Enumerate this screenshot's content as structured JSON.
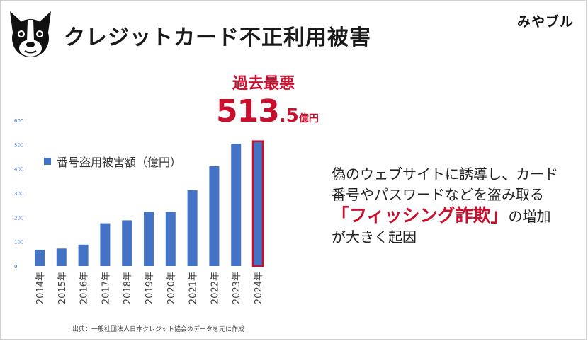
{
  "header": {
    "title": "クレジットカード不正利用被害",
    "brand": "みやブル"
  },
  "colors": {
    "bar": "#4472c4",
    "highlight_border": "#c8102e",
    "accent_red": "#c8102e"
  },
  "icons": {
    "logo": "boston-terrier-logo-icon"
  },
  "callout": {
    "title": "過去最悪",
    "value_int": "513",
    "value_dec": ".5",
    "unit": "億円"
  },
  "message": {
    "line1": "偽のウェブサイトに誘導し、カード",
    "line2": "番号やパスワードなどを盗み取る",
    "highlight": "「フィッシング詐欺」",
    "line3_suffix": "の増加",
    "line4": "が大きく起因"
  },
  "source": "出典：一般社団法人日本クレジット協会のデータを元に作成",
  "chart_data": {
    "type": "bar",
    "categories": [
      "2014年",
      "2015年",
      "2016年",
      "2017年",
      "2018年",
      "2019年",
      "2020年",
      "2021年",
      "2022年",
      "2023年",
      "2024年"
    ],
    "series": [
      {
        "name": "番号盗用被害額（億円）",
        "values": [
          67,
          72,
          88,
          176,
          188,
          223,
          223,
          312,
          411,
          504,
          513.5
        ]
      }
    ],
    "yticks": [
      "0",
      "100",
      "200",
      "300",
      "400",
      "500",
      "600"
    ],
    "ylim": [
      0,
      600
    ],
    "highlight_index": 10,
    "grid": false,
    "legend": "top-left"
  }
}
